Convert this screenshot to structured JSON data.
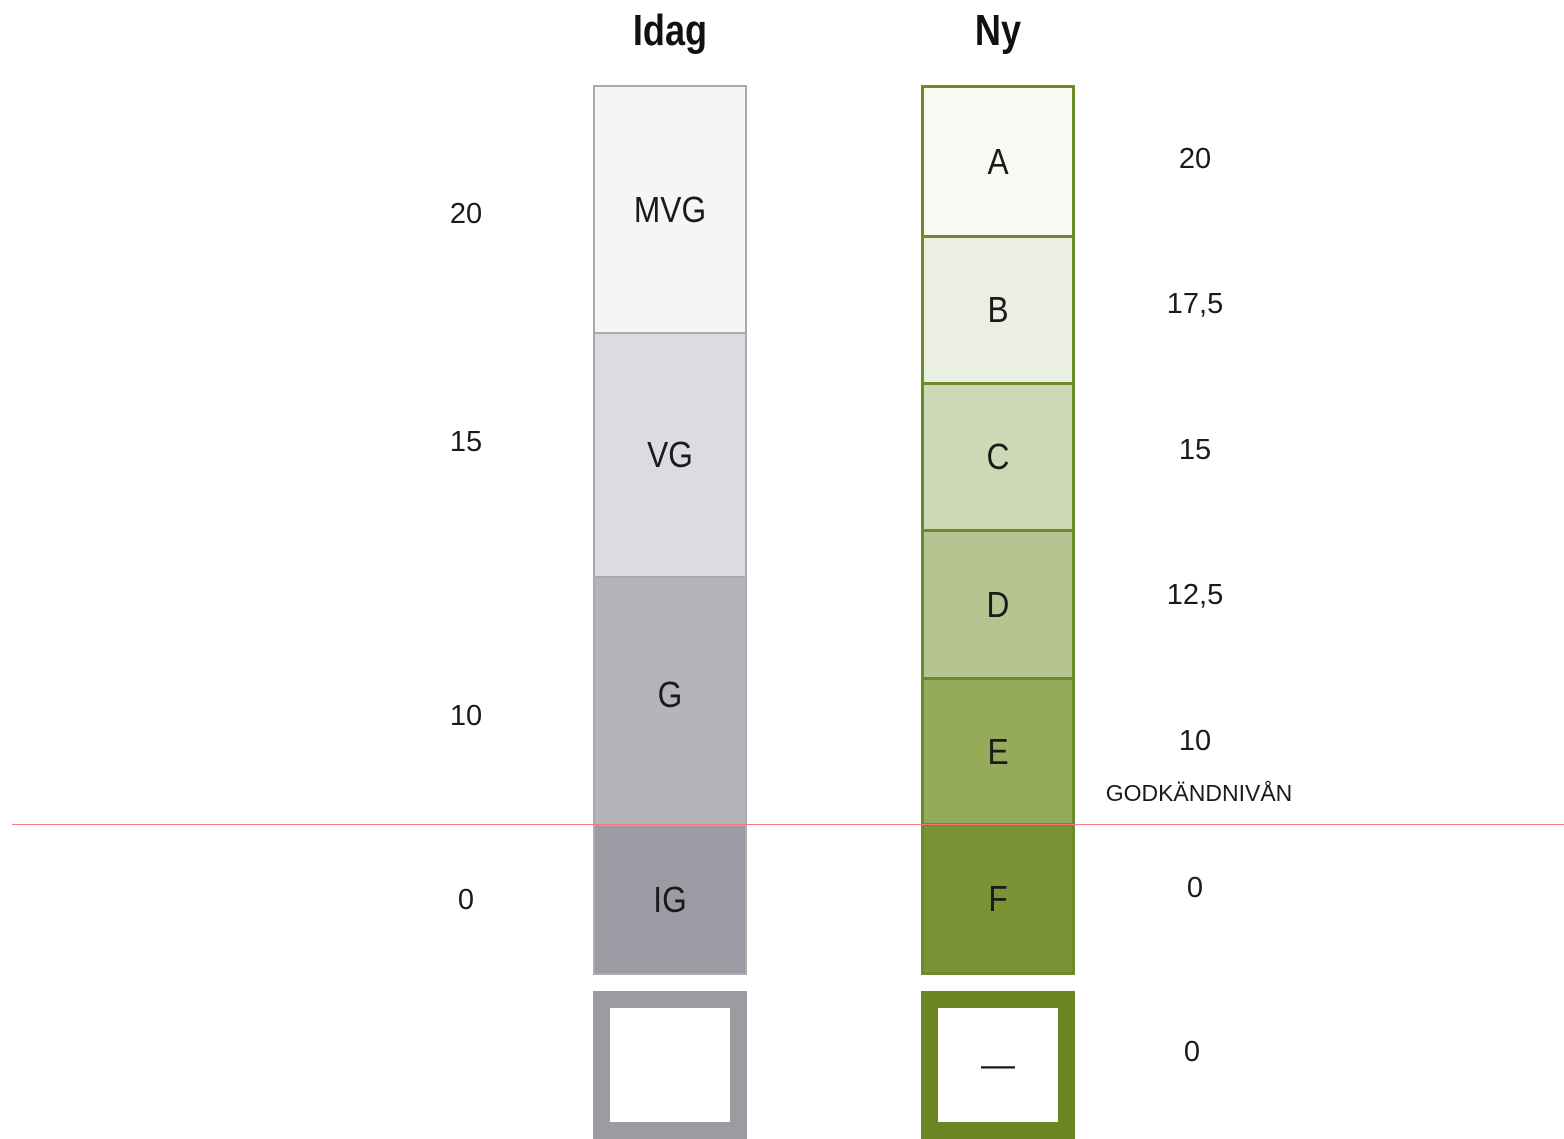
{
  "headers": {
    "old": "Idag",
    "new": "Ny"
  },
  "old_scale": {
    "grades": [
      {
        "label": "MVG",
        "color": "#f5f5f7"
      },
      {
        "label": "VG",
        "color": "#dcdce0"
      },
      {
        "label": "G",
        "color": "#b4b5ba"
      },
      {
        "label": "IG",
        "color": "#9c9ba3"
      }
    ],
    "points": [
      "20",
      "15",
      "10",
      "0"
    ]
  },
  "new_scale": {
    "grades": [
      {
        "label": "A",
        "color": "#f7f9f2"
      },
      {
        "label": "B",
        "color": "#ebefe2"
      },
      {
        "label": "C",
        "color": "#cfd8b6"
      },
      {
        "label": "D",
        "color": "#b5c490"
      },
      {
        "label": "E",
        "color": "#96aa5c"
      },
      {
        "label": "F",
        "color": "#7a9335"
      }
    ],
    "points": [
      "20",
      "17,5",
      "15",
      "12,5",
      "10",
      "0"
    ]
  },
  "pass_level_label": "GODKÄNDNIVÅN",
  "no_grade": {
    "new_mark": "—",
    "points": "0"
  },
  "colors": {
    "pass_line": "#ee7b85",
    "old_border": "#a9a9ae",
    "new_border": "#6b8a2a"
  }
}
